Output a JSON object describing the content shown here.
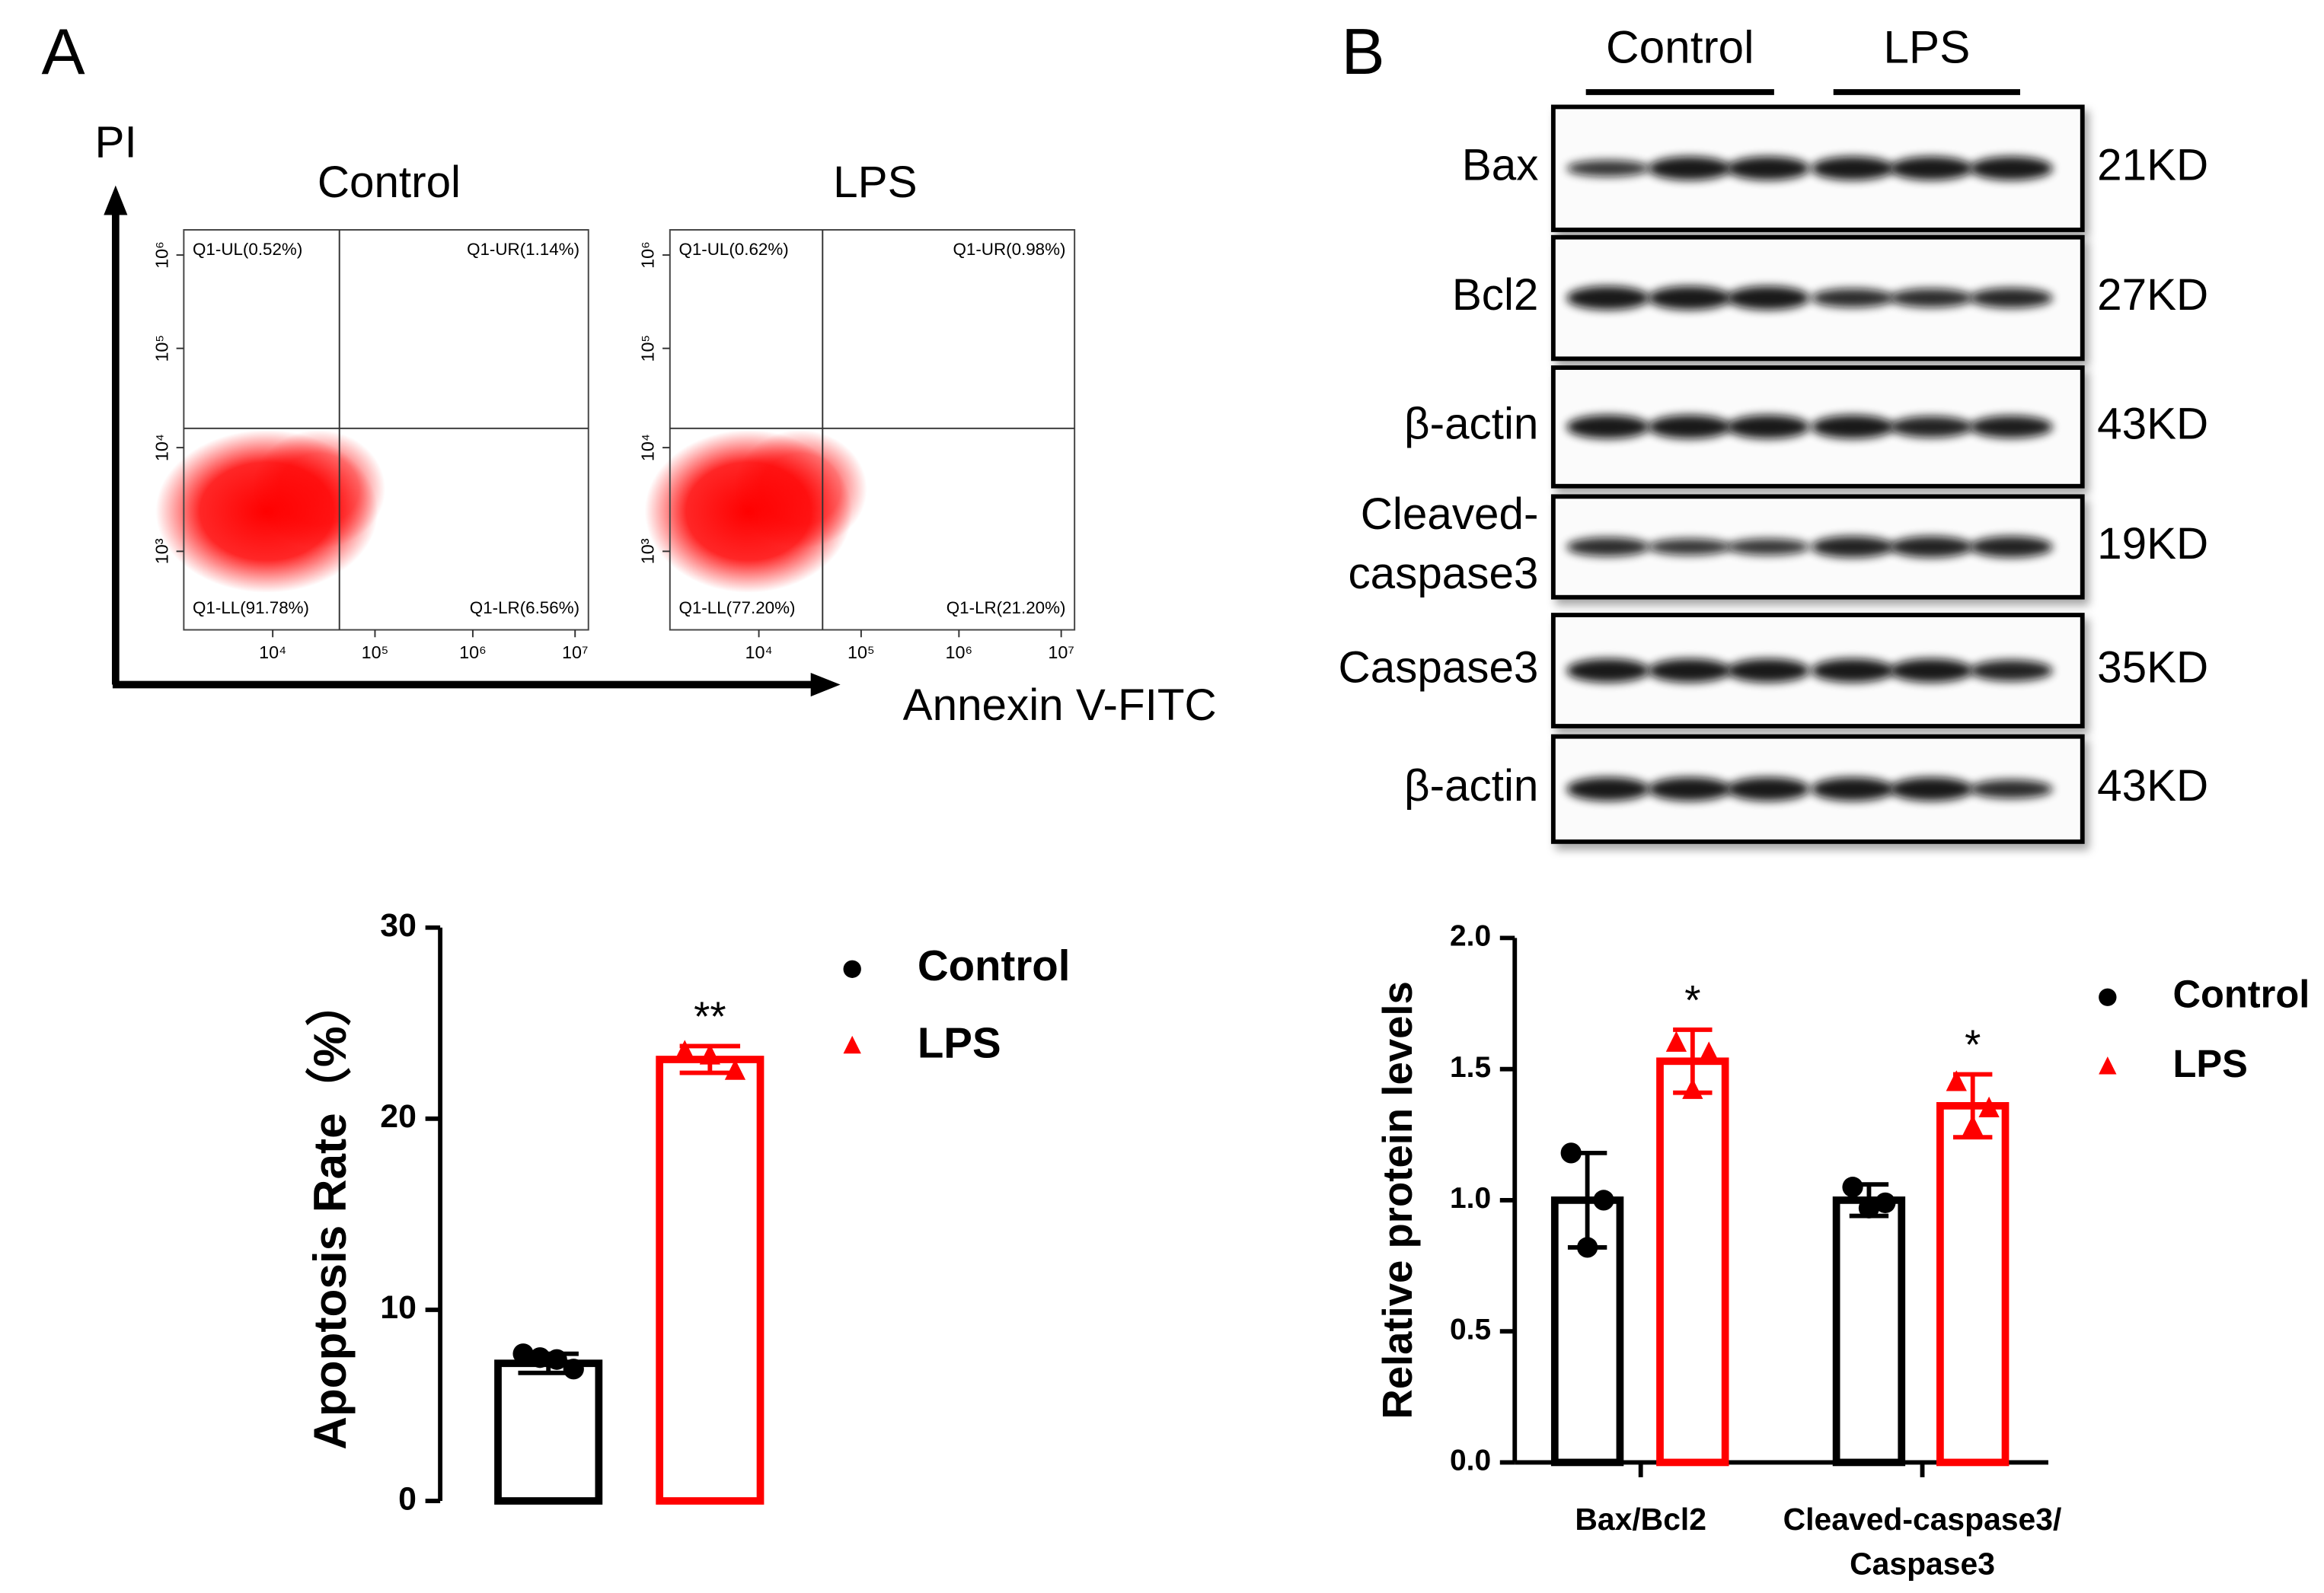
{
  "panel_labels": [
    "A",
    "B"
  ],
  "flow": {
    "y_label": "PI",
    "x_label": "Annexin V-FITC",
    "x_tick_labels": [
      "10⁴",
      "10⁵",
      "10⁶",
      "10⁷"
    ],
    "y_tick_labels": [
      "10³",
      "10⁴",
      "10⁵",
      "10⁶"
    ],
    "plots": [
      {
        "title": "Control",
        "quadrants": [
          "Q1-UL(0.52%)",
          "Q1-UR(1.14%)",
          "Q1-LL(91.78%)",
          "Q1-LR(6.56%)"
        ]
      },
      {
        "title": "LPS",
        "quadrants": [
          "Q1-UL(0.62%)",
          "Q1-UR(0.98%)",
          "Q1-LL(77.20%)",
          "Q1-LR(21.20%)"
        ]
      }
    ]
  },
  "blot": {
    "groups": [
      "Control",
      "LPS"
    ],
    "rows": [
      {
        "label": [
          "Bax"
        ],
        "size": "21KD"
      },
      {
        "label": [
          "Bcl2"
        ],
        "size": "27KD"
      },
      {
        "label": [
          "β-actin"
        ],
        "size": "43KD"
      },
      {
        "label": [
          "Cleaved-",
          "caspase3"
        ],
        "size": "19KD"
      },
      {
        "label": [
          "Caspase3"
        ],
        "size": "35KD"
      },
      {
        "label": [
          "β-actin"
        ],
        "size": "43KD"
      }
    ]
  },
  "chart_data": [
    {
      "type": "bar",
      "y_label": "Apoptosis Rate（%）",
      "ylim": [
        0,
        30
      ],
      "yticks": [
        0,
        10,
        20,
        30
      ],
      "series": [
        {
          "name": "Control",
          "color": "#000000",
          "marker": "circle",
          "values": [
            7.2
          ],
          "errors": [
            0.5
          ],
          "points": [
            [
              7.7,
              7.5,
              7.4,
              6.9
            ]
          ]
        },
        {
          "name": "LPS",
          "color": "#ff0000",
          "marker": "triangle",
          "values": [
            23.1
          ],
          "errors": [
            0.7
          ],
          "points": [
            [
              23.5,
              23.3,
              22.5
            ]
          ],
          "significance": [
            "**"
          ]
        }
      ]
    },
    {
      "type": "bar",
      "y_label": "Relative protein levels",
      "categories": [
        [
          "Bax/Bcl2"
        ],
        [
          "Cleaved-caspase3/",
          "Caspase3"
        ]
      ],
      "ylim": [
        0,
        2
      ],
      "yticks": [
        {
          "value": 0,
          "label": "0.0"
        },
        {
          "value": 0.5,
          "label": "0.5"
        },
        {
          "value": 1,
          "label": "1.0"
        },
        {
          "value": 1.5,
          "label": "1.5"
        },
        {
          "value": 2,
          "label": "2.0"
        }
      ],
      "series": [
        {
          "name": "Control",
          "color": "#000000",
          "marker": "circle",
          "values": [
            1.0,
            1.0
          ],
          "errors": [
            0.18,
            0.06
          ],
          "points": [
            [
              1.18,
              0.82,
              1.0
            ],
            [
              1.05,
              0.97,
              0.99
            ]
          ]
        },
        {
          "name": "LPS",
          "color": "#ff0000",
          "marker": "triangle",
          "values": [
            1.53,
            1.36
          ],
          "errors": [
            0.12,
            0.12
          ],
          "points": [
            [
              1.6,
              1.42,
              1.56
            ],
            [
              1.45,
              1.28,
              1.35
            ]
          ],
          "significance": [
            "*",
            "*"
          ]
        }
      ]
    }
  ]
}
